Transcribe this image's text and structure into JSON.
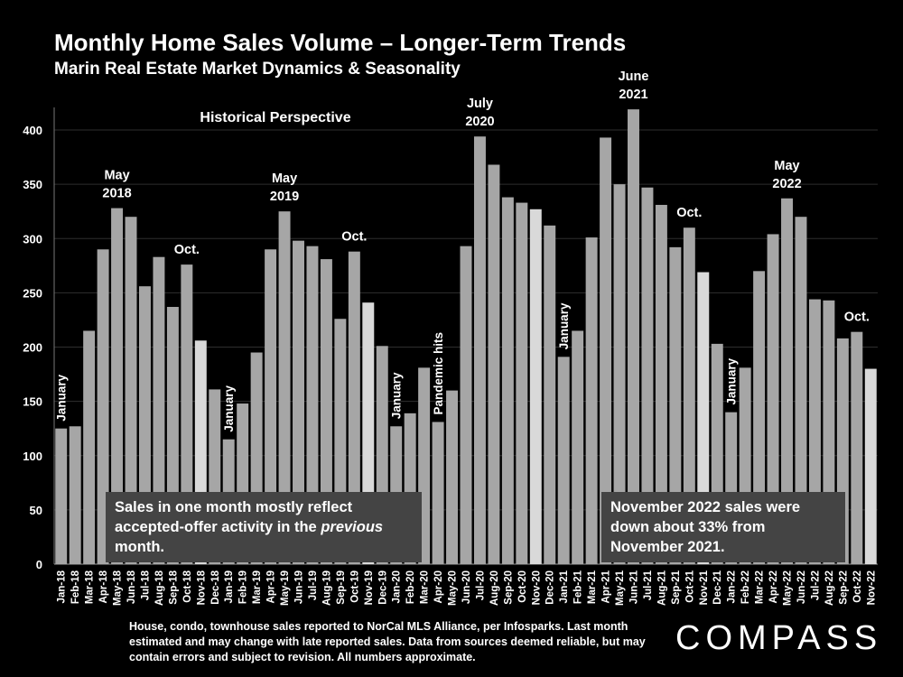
{
  "header": {
    "title": "Monthly Home Sales Volume – Longer-Term Trends",
    "subtitle": "Marin Real Estate Market Dynamics & Seasonality"
  },
  "chart_data": {
    "type": "bar",
    "title": "Monthly Home Sales Volume – Longer-Term Trends",
    "xlabel": "",
    "ylabel": "",
    "ylim": [
      0,
      420
    ],
    "yticks": [
      0,
      50,
      100,
      150,
      200,
      250,
      300,
      350,
      400
    ],
    "grid": true,
    "categories": [
      "Jan-18",
      "Feb-18",
      "Mar-18",
      "Apr-18",
      "May-18",
      "Jun-18",
      "Jul-18",
      "Aug-18",
      "Sep-18",
      "Oct-18",
      "Nov-18",
      "Dec-18",
      "Jan-19",
      "Feb-19",
      "Mar-19",
      "Apr-19",
      "May-19",
      "Jun-19",
      "Jul-19",
      "Aug-19",
      "Sep-19",
      "Oct-19",
      "Nov-19",
      "Dec-19",
      "Jan-20",
      "Feb-20",
      "Mar-20",
      "Apr-20",
      "May-20",
      "Jun-20",
      "Jul-20",
      "Aug-20",
      "Sep-20",
      "Oct-20",
      "Nov-20",
      "Dec-20",
      "Jan-21",
      "Feb-21",
      "Mar-21",
      "Apr-21",
      "May-21",
      "Jun-21",
      "Jul-21",
      "Aug-21",
      "Sep-21",
      "Oct-21",
      "Nov-21",
      "Dec-21",
      "Jan-22",
      "Feb-22",
      "Mar-22",
      "Apr-22",
      "May-22",
      "Jun-22",
      "Jul-22",
      "Aug-22",
      "Sep-22",
      "Oct-22",
      "Nov-22"
    ],
    "values": [
      125,
      127,
      215,
      290,
      328,
      320,
      256,
      283,
      237,
      276,
      206,
      161,
      115,
      148,
      195,
      290,
      325,
      298,
      293,
      281,
      226,
      288,
      241,
      201,
      127,
      139,
      181,
      131,
      160,
      293,
      394,
      368,
      338,
      333,
      327,
      312,
      191,
      215,
      301,
      393,
      350,
      419,
      347,
      331,
      292,
      310,
      269,
      203,
      140,
      181,
      270,
      304,
      337,
      320,
      244,
      243,
      208,
      214,
      180
    ],
    "highlight_color": "#d9d9d9",
    "bar_color": "#a6a6a6",
    "highlight_categories": [
      "Nov-18",
      "Nov-19",
      "Nov-20",
      "Nov-21",
      "Nov-22"
    ],
    "inset_label": "Historical Perspective",
    "annotations": [
      {
        "text": [
          "January"
        ],
        "category": "Jan-18",
        "vertical": true
      },
      {
        "text": [
          "May",
          "2018"
        ],
        "category": "May-18",
        "vertical": false
      },
      {
        "text": [
          "Oct."
        ],
        "category": "Oct-18",
        "vertical": false
      },
      {
        "text": [
          "January"
        ],
        "category": "Jan-19",
        "vertical": true
      },
      {
        "text": [
          "May",
          "2019"
        ],
        "category": "May-19",
        "vertical": false
      },
      {
        "text": [
          "Oct."
        ],
        "category": "Oct-19",
        "vertical": false
      },
      {
        "text": [
          "January"
        ],
        "category": "Jan-20",
        "vertical": true
      },
      {
        "text": [
          "Pandemic hits"
        ],
        "category": "Apr-20",
        "vertical": true
      },
      {
        "text": [
          "July",
          "2020"
        ],
        "category": "Jul-20",
        "vertical": false
      },
      {
        "text": [
          "January"
        ],
        "category": "Jan-21",
        "vertical": true
      },
      {
        "text": [
          "June",
          "2021"
        ],
        "category": "Jun-21",
        "vertical": false
      },
      {
        "text": [
          "Oct."
        ],
        "category": "Oct-21",
        "vertical": false
      },
      {
        "text": [
          "January"
        ],
        "category": "Jan-22",
        "vertical": true
      },
      {
        "text": [
          "May",
          "2022"
        ],
        "category": "May-22",
        "vertical": false
      },
      {
        "text": [
          "Oct."
        ],
        "category": "Oct-22",
        "vertical": false
      }
    ]
  },
  "notes": {
    "left_box_part1": "Sales in one month mostly reflect accepted-offer activity in the ",
    "left_box_emphasis": "previous",
    "left_box_part2": " month.",
    "right_box": "November 2022 sales were down about 33% from November 2021."
  },
  "footer": {
    "footnote": "House, condo, townhouse sales reported to NorCal MLS Alliance, per Infosparks. Last month estimated and may change with late reported sales. Data from sources deemed reliable, but may contain errors and subject to revision. All numbers approximate.",
    "logo": "COMPASS"
  }
}
